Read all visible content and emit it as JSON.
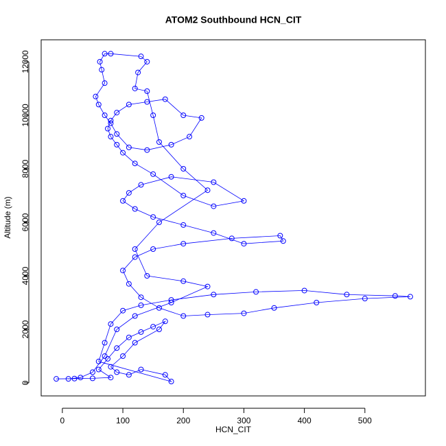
{
  "chart_data": {
    "type": "line",
    "title": "ATOM2 Southbound HCN_CIT",
    "xlabel": "HCN_CIT",
    "ylabel": "Altitude (m)",
    "color": "#0000ff",
    "x": [
      -10,
      20,
      50,
      80,
      60,
      75,
      90,
      110,
      130,
      150,
      170,
      160,
      120,
      100,
      80,
      90,
      110,
      130,
      170,
      180,
      60,
      70,
      80,
      100,
      130,
      180,
      250,
      320,
      400,
      470,
      550,
      575,
      500,
      420,
      350,
      300,
      240,
      200,
      160,
      130,
      110,
      100,
      120,
      150,
      200,
      280,
      360,
      365,
      300,
      250,
      200,
      150,
      120,
      100,
      110,
      130,
      180,
      250,
      300,
      250,
      200,
      150,
      120,
      100,
      90,
      80,
      75,
      80,
      90,
      110,
      140,
      170,
      200,
      230,
      210,
      180,
      140,
      110,
      90,
      80,
      70,
      60,
      55,
      70,
      65,
      62,
      70,
      80,
      130,
      140,
      125,
      120,
      140,
      150,
      160,
      200,
      240,
      160,
      120,
      140,
      200,
      240,
      180,
      120,
      90,
      70,
      50,
      30,
      10
    ],
    "y": [
      150,
      160,
      170,
      200,
      500,
      900,
      1300,
      1700,
      1900,
      2100,
      2300,
      2000,
      1500,
      1000,
      600,
      400,
      300,
      500,
      300,
      50,
      800,
      1500,
      2200,
      2700,
      2900,
      3100,
      3300,
      3400,
      3450,
      3300,
      3250,
      3220,
      3150,
      3000,
      2800,
      2600,
      2550,
      2500,
      2800,
      3200,
      3700,
      4200,
      4700,
      5000,
      5200,
      5400,
      5500,
      5300,
      5200,
      5600,
      5900,
      6200,
      6500,
      6800,
      7100,
      7400,
      7700,
      7500,
      6800,
      6600,
      7000,
      7800,
      8200,
      8600,
      8900,
      9200,
      9500,
      9800,
      10100,
      10400,
      10500,
      10600,
      10000,
      9900,
      9200,
      8900,
      8700,
      8800,
      9300,
      9700,
      10000,
      10400,
      10700,
      11200,
      11700,
      12000,
      12300,
      12300,
      12200,
      12000,
      11600,
      11000,
      10900,
      10000,
      9000,
      8000,
      7200,
      6000,
      5000,
      4000,
      3800,
      3600,
      3000,
      2500,
      2000,
      1000,
      400,
      200,
      150
    ],
    "xlim": [
      -35,
      600
    ],
    "ylim": [
      -487,
      12820
    ],
    "xticks": [
      0,
      100,
      200,
      300,
      400,
      500
    ],
    "yticks": [
      0,
      2000,
      4000,
      6000,
      8000,
      10000,
      12000
    ]
  }
}
